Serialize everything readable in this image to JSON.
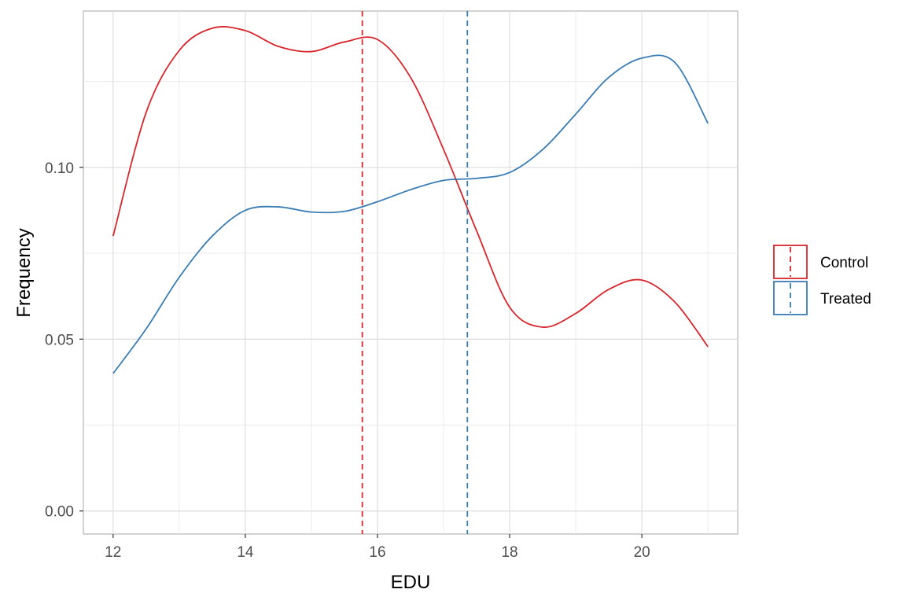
{
  "chart_data": {
    "type": "line",
    "title": "",
    "xlabel": "EDU",
    "ylabel": "Frequency",
    "xlim": [
      11.55,
      21.45
    ],
    "ylim": [
      -0.0067,
      0.1455
    ],
    "x_ticks": [
      12,
      14,
      16,
      18,
      20
    ],
    "y_ticks": [
      0.0,
      0.05,
      0.1
    ],
    "x_tick_labels": [
      "12",
      "14",
      "16",
      "18",
      "20"
    ],
    "y_tick_labels": [
      "0.00",
      "0.05",
      "0.10"
    ],
    "grid": true,
    "legend_position": "right",
    "series": [
      {
        "name": "Control",
        "color": "#d7262c",
        "x": [
          12,
          12.5,
          13,
          13.5,
          14,
          14.5,
          15,
          15.5,
          16,
          16.5,
          17,
          17.5,
          18,
          18.5,
          19,
          19.5,
          20,
          20.5,
          21
        ],
        "y": [
          0.08,
          0.116,
          0.134,
          0.1405,
          0.1398,
          0.1352,
          0.1337,
          0.1365,
          0.1372,
          0.1262,
          0.1052,
          0.0815,
          0.0593,
          0.0535,
          0.0575,
          0.0645,
          0.0672,
          0.0608,
          0.0478
        ],
        "mean": 15.77
      },
      {
        "name": "Treated",
        "color": "#3a7cb4",
        "x": [
          12,
          12.5,
          13,
          13.5,
          14,
          14.5,
          15,
          15.5,
          16,
          16.5,
          17,
          17.5,
          18,
          18.5,
          19,
          19.5,
          20,
          20.5,
          21
        ],
        "y": [
          0.04,
          0.053,
          0.068,
          0.08,
          0.0875,
          0.0885,
          0.087,
          0.0872,
          0.09,
          0.0935,
          0.0962,
          0.0968,
          0.0985,
          0.1052,
          0.1155,
          0.1262,
          0.1318,
          0.1305,
          0.1128
        ],
        "mean": 17.36
      }
    ]
  }
}
